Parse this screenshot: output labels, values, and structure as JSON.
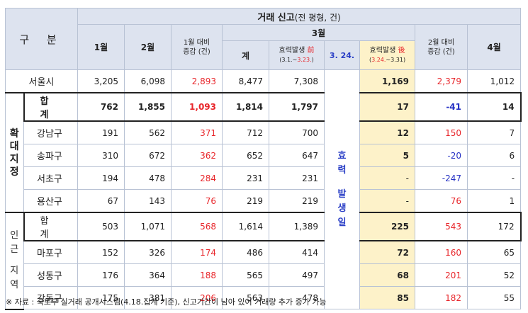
{
  "title_main": "거래 신고",
  "title_sub": "(전 평형, 건)",
  "header": {
    "gubun": "구 분",
    "jan": "1월",
    "feb": "2월",
    "jan_vs": "1월 대비",
    "jan_vs_unit": "증감 (건)",
    "mar": "3월",
    "total": "계",
    "before_main_a": "효력발생 ",
    "before_main_b": "前",
    "before_sub_a": "(3.1.~",
    "before_sub_b": "3.23.",
    "before_sub_c": ")",
    "date": "3. 24.",
    "after_main_a": "효력발생 ",
    "after_main_b": "後",
    "after_sub_a": "(",
    "after_sub_b": "3.24.",
    "after_sub_c": "~3.31)",
    "feb_vs": "2월 대비",
    "feb_vs_unit": "증감 (건)",
    "apr": "4월"
  },
  "mid_label": [
    "효",
    "력",
    "발",
    "생",
    "일"
  ],
  "group1_label": [
    "확",
    "대",
    "지",
    "정"
  ],
  "group2_label": [
    "인",
    "근",
    "지",
    "역"
  ],
  "rows": {
    "seoul": {
      "name": "서울시",
      "jan": "3,205",
      "feb": "6,098",
      "janvs": "2,893",
      "tot": "8,477",
      "before": "7,308",
      "after": "1,169",
      "febvs": "2,379",
      "apr": "1,012"
    },
    "g1total": {
      "name": "합 계",
      "jan": "762",
      "feb": "1,855",
      "janvs": "1,093",
      "tot": "1,814",
      "before": "1,797",
      "after": "17",
      "febvs": "-41",
      "apr": "14"
    },
    "gangnam": {
      "name": "강남구",
      "jan": "191",
      "feb": "562",
      "janvs": "371",
      "tot": "712",
      "before": "700",
      "after": "12",
      "febvs": "150",
      "apr": "7"
    },
    "songpa": {
      "name": "송파구",
      "jan": "310",
      "feb": "672",
      "janvs": "362",
      "tot": "652",
      "before": "647",
      "after": "5",
      "febvs": "-20",
      "apr": "6"
    },
    "seocho": {
      "name": "서초구",
      "jan": "194",
      "feb": "478",
      "janvs": "284",
      "tot": "231",
      "before": "231",
      "after": "-",
      "febvs": "-247",
      "apr": "-"
    },
    "yongsan": {
      "name": "용산구",
      "jan": "67",
      "feb": "143",
      "janvs": "76",
      "tot": "219",
      "before": "219",
      "after": "-",
      "febvs": "76",
      "apr": "1"
    },
    "g2total": {
      "name": "합 계",
      "jan": "503",
      "feb": "1,071",
      "janvs": "568",
      "tot": "1,614",
      "before": "1,389",
      "after": "225",
      "febvs": "543",
      "apr": "172"
    },
    "mapo": {
      "name": "마포구",
      "jan": "152",
      "feb": "326",
      "janvs": "174",
      "tot": "486",
      "before": "414",
      "after": "72",
      "febvs": "160",
      "apr": "65"
    },
    "seongdong": {
      "name": "성동구",
      "jan": "176",
      "feb": "364",
      "janvs": "188",
      "tot": "565",
      "before": "497",
      "after": "68",
      "febvs": "201",
      "apr": "52"
    },
    "gangdong": {
      "name": "강동구",
      "jan": "175",
      "feb": "381",
      "janvs": "206",
      "tot": "563",
      "before": "478",
      "after": "85",
      "febvs": "182",
      "apr": "55"
    }
  },
  "note": "※ 자료 : 국토부 실거래 공개시스템(4.18.집계 기준), 신고기간이 남아 있어 거래량 추가 증가 가능",
  "colors": {
    "header_bg": "#dde3ef",
    "highlight": "#fdf2c9",
    "red": "#e8262b",
    "blue": "#2530c4"
  }
}
